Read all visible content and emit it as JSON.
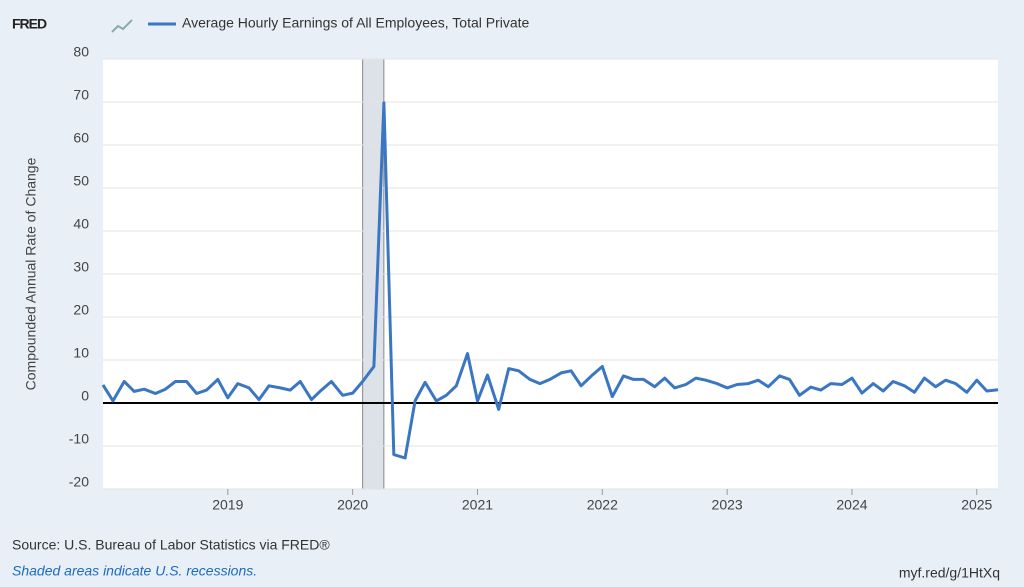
{
  "logo": "FRED",
  "chart_data": {
    "type": "line",
    "series": [
      {
        "name": "Average Hourly Earnings of All Employees, Total Private",
        "color": "#3a76c2",
        "values": [
          4.2,
          0.5,
          5,
          2.7,
          3.2,
          2.2,
          3.2,
          5,
          5,
          2.2,
          3,
          5.5,
          1.2,
          4.5,
          3.5,
          0.8,
          4,
          3.5,
          3,
          5,
          0.8,
          3,
          5,
          1.8,
          2.3,
          5,
          8.5,
          69.8,
          -12,
          -12.8,
          0.5,
          4.8,
          0.5,
          1.8,
          4,
          11.5,
          0.5,
          6.5,
          -1.5,
          8,
          7.5,
          5.5,
          4.5,
          5.5,
          7,
          7.5,
          4,
          6.5,
          8.5,
          1.5,
          6.3,
          5.5,
          5.5,
          3.8,
          5.8,
          3.5,
          4.3,
          5.8,
          5.3,
          4.5,
          3.5,
          4.3,
          4.5,
          5.3,
          3.8,
          6.3,
          5.5,
          1.8,
          3.7,
          3,
          4.5,
          4.3,
          5.8,
          2.3,
          4.5,
          2.8,
          5,
          4,
          2.5,
          5.8,
          3.8,
          5.3,
          4.5,
          2.5,
          5.3,
          2.8,
          3.1
        ]
      }
    ],
    "x": [
      2018,
      2018.08,
      2018.17,
      2018.25,
      2018.33,
      2018.42,
      2018.5,
      2018.58,
      2018.67,
      2018.75,
      2018.83,
      2018.92,
      2019,
      2019.08,
      2019.17,
      2019.25,
      2019.33,
      2019.42,
      2019.5,
      2019.58,
      2019.67,
      2019.75,
      2019.83,
      2019.92,
      2020,
      2020.08,
      2020.17,
      2020.25,
      2020.33,
      2020.42,
      2020.5,
      2020.58,
      2020.67,
      2020.75,
      2020.83,
      2020.92,
      2021,
      2021.08,
      2021.17,
      2021.25,
      2021.33,
      2021.42,
      2021.5,
      2021.58,
      2021.67,
      2021.75,
      2021.83,
      2021.92,
      2022,
      2022.08,
      2022.17,
      2022.25,
      2022.33,
      2022.42,
      2022.5,
      2022.58,
      2022.67,
      2022.75,
      2022.83,
      2022.92,
      2023,
      2023.08,
      2023.17,
      2023.25,
      2023.33,
      2023.42,
      2023.5,
      2023.58,
      2023.67,
      2023.75,
      2023.83,
      2023.92,
      2024,
      2024.08,
      2024.17,
      2024.25,
      2024.33,
      2024.42,
      2024.5,
      2024.58,
      2024.67,
      2024.75,
      2024.83,
      2024.92,
      2025,
      2025.08,
      2025.17
    ],
    "recessions": [
      [
        2020.08,
        2020.25
      ]
    ],
    "xlim": [
      2018,
      2025.17
    ],
    "xticks": [
      2019,
      2020,
      2021,
      2022,
      2023,
      2024,
      2025
    ],
    "ylim": [
      -20,
      80
    ],
    "yticks": [
      -20,
      -10,
      0,
      10,
      20,
      30,
      40,
      50,
      60,
      70,
      80
    ],
    "grid": true,
    "y_label": "Compounded Annual Rate of Change"
  },
  "footer": {
    "source": "Source: U.S. Bureau of Labor Statistics via FRED®",
    "note": "Shaded areas indicate U.S. recessions.",
    "link": "myf.red/g/1HtXq"
  }
}
